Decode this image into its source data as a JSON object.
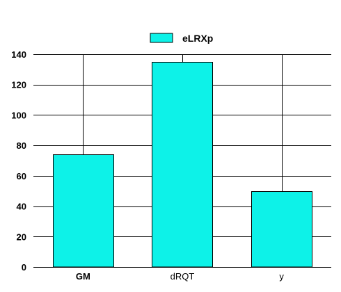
{
  "chart_data": {
    "type": "bar",
    "categories": [
      "GM",
      "dRQT",
      "y"
    ],
    "series": [
      {
        "name": "eLRXp",
        "values": [
          74,
          135,
          50
        ],
        "color": "#0df2e8"
      }
    ],
    "ylim": [
      0,
      140
    ],
    "yticks": [
      0,
      20,
      40,
      60,
      80,
      100,
      120,
      140
    ],
    "bold_categories": [
      "GM"
    ],
    "grid": "horizontal and vertical",
    "legend_position": "top-center",
    "xlabel": "",
    "ylabel": "",
    "title": ""
  }
}
